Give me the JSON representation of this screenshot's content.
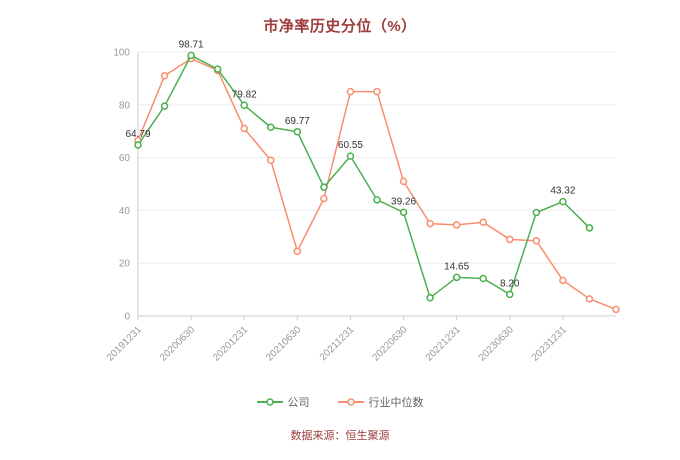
{
  "title": "市净率历史分位（%）",
  "source": "数据来源：恒生聚源",
  "colors": {
    "title": "#9d3c3c",
    "source": "#9d3c3c",
    "company": "#4caf50",
    "industry_median": "#f98d6d",
    "axis_text": "#999999",
    "axis_line": "#cccccc",
    "grid_line": "#ededed",
    "point_label": "#333333",
    "legend_text": "#666666"
  },
  "chart_data": {
    "type": "line",
    "title": "市净率历史分位（%）",
    "xlabel": "",
    "ylabel": "",
    "ylim": [
      0,
      100
    ],
    "yticks": [
      0,
      20,
      40,
      60,
      80,
      100
    ],
    "grid": true,
    "legend_position": "bottom",
    "x_tick_labels": [
      "20191231",
      "20200630",
      "20201231",
      "20210630",
      "20211231",
      "20220630",
      "20221231",
      "20230630",
      "20231231"
    ],
    "x_tick_indices": [
      0,
      2,
      4,
      6,
      8,
      10,
      12,
      14,
      16
    ],
    "series": [
      {
        "id": "company",
        "name": "公司",
        "color": "#4caf50",
        "values": [
          64.79,
          79.5,
          98.71,
          93.5,
          79.82,
          71.5,
          69.77,
          48.8,
          60.55,
          44.0,
          39.26,
          6.9,
          14.65,
          14.2,
          8.2,
          39.2,
          43.32,
          33.4,
          null
        ],
        "point_labels": [
          "64.79",
          null,
          "98.71",
          null,
          "79.82",
          null,
          "69.77",
          null,
          "60.55",
          null,
          "39.26",
          null,
          "14.65",
          null,
          "8.20",
          null,
          "43.32",
          null,
          null
        ]
      },
      {
        "id": "industry-median",
        "name": "行业中位数",
        "color": "#f98d6d",
        "values": [
          66.5,
          91,
          97.5,
          93,
          71,
          59,
          24.5,
          44.5,
          85,
          85,
          51,
          35,
          34.5,
          35.5,
          29,
          28.5,
          13.5,
          6.5,
          2.5
        ],
        "point_labels": []
      }
    ]
  }
}
